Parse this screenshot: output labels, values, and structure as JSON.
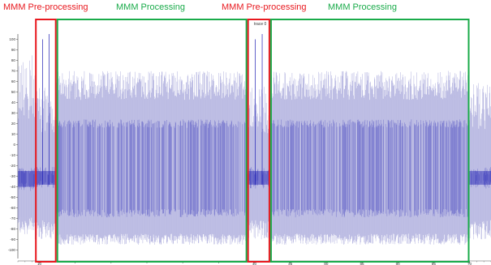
{
  "labels": {
    "pre_1": "MMM Pre-processing",
    "proc_1": "MMM Processing",
    "pre_2": "MMM Pre-processing",
    "proc_2": "MMM Processing",
    "trace": "trace 0"
  },
  "colors": {
    "pre_processing": "#e8191f",
    "processing": "#1aab4a",
    "signal_dark": "#1e1eb4",
    "signal_light": "#7c7cc8",
    "axis": "#555555"
  },
  "chart_data": {
    "type": "line",
    "title": "",
    "xlabel": "",
    "ylabel": "",
    "ylim": [
      -105,
      105
    ],
    "yticks": [
      100,
      90,
      80,
      70,
      60,
      50,
      40,
      30,
      20,
      10,
      0,
      -10,
      -20,
      -30,
      -40,
      -50,
      -60,
      -70,
      -80,
      -90,
      -100
    ],
    "xlim": [
      7,
      73
    ],
    "xticks": [
      10,
      15,
      20,
      25,
      30,
      35,
      40,
      45,
      50,
      55,
      60,
      65,
      70
    ],
    "xtick_labels": [
      "10",
      "",
      "",
      "",
      "",
      "",
      "40",
      "45",
      "50",
      "55",
      "60",
      "65",
      "70"
    ],
    "series": [
      {
        "segments": [
          {
            "x_start": 7.0,
            "x_end": 9.4,
            "phase": "pre-processing",
            "envelope_max": 85,
            "envelope_min": -85,
            "core_max": -25,
            "core_min": -40
          },
          {
            "x_start": 9.4,
            "x_end": 12.4,
            "phase": "pre-processing",
            "envelope_max": 55,
            "envelope_min": -90,
            "core_max": -25,
            "core_min": -38,
            "spikes": [
              100,
              105
            ]
          },
          {
            "x_start": 12.4,
            "x_end": 39.0,
            "phase": "processing",
            "envelope_max": 70,
            "envelope_min": -95,
            "core_max": 20,
            "core_min": -65
          },
          {
            "x_start": 39.0,
            "x_end": 42.2,
            "phase": "pre-processing",
            "envelope_max": 55,
            "envelope_min": -90,
            "core_max": -25,
            "core_min": -38,
            "spikes": [
              100,
              105
            ]
          },
          {
            "x_start": 42.2,
            "x_end": 70.0,
            "phase": "processing",
            "envelope_max": 70,
            "envelope_min": -95,
            "core_max": 20,
            "core_min": -65
          },
          {
            "x_start": 70.0,
            "x_end": 73.0,
            "phase": "pre-processing",
            "envelope_max": 60,
            "envelope_min": -90,
            "core_max": -25,
            "core_min": -38
          }
        ]
      }
    ],
    "highlight_boxes": [
      {
        "phase": "pre-processing",
        "x_start": 9.4,
        "x_end": 12.4
      },
      {
        "phase": "processing",
        "x_start": 12.4,
        "x_end": 39.0
      },
      {
        "phase": "pre-processing",
        "x_start": 39.0,
        "x_end": 42.2
      },
      {
        "phase": "processing",
        "x_start": 42.2,
        "x_end": 70.0
      }
    ],
    "grid": false
  }
}
